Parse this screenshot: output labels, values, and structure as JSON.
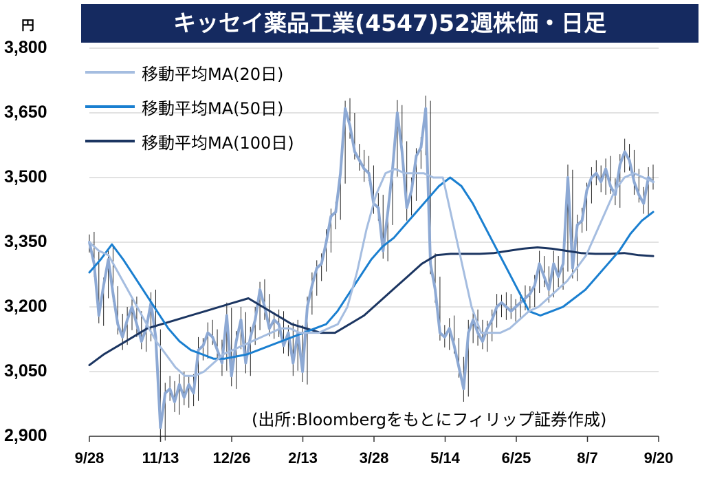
{
  "header": {
    "title": "キッセイ薬品工業(4547)52週株価・日足",
    "unit": "円"
  },
  "source_note": "(出所:Bloombergをもとにフィリップ証券作成)",
  "colors": {
    "title_bg": "#152a60",
    "price": "#8da9d4",
    "ma20": "#a5bde0",
    "ma50": "#1a7fd0",
    "ma100": "#1b3561",
    "grid": "#d0d0d0"
  },
  "chart_data": {
    "type": "line",
    "title": "キッセイ薬品工業(4547)52週株価・日足",
    "ylabel": "円",
    "ylim": [
      2900,
      3800
    ],
    "yticks": [
      "3,800",
      "3,650",
      "3,500",
      "3,350",
      "3,200",
      "3,050",
      "2,900"
    ],
    "ytick_values": [
      3800,
      3650,
      3500,
      3350,
      3200,
      3050,
      2900
    ],
    "xticks": [
      "9/28",
      "11/13",
      "12/26",
      "2/13",
      "3/28",
      "5/14",
      "6/25",
      "8/7",
      "9/20"
    ],
    "grid": "horizontal",
    "legend_position": "top-left",
    "price_series": {
      "name": "",
      "values": [
        3350,
        3300,
        3180,
        3250,
        3310,
        3230,
        3160,
        3130,
        3170,
        3200,
        3160,
        3120,
        3150,
        3210,
        3130,
        2920,
        3000,
        3010,
        2980,
        3020,
        2990,
        3020,
        3000,
        3100,
        3110,
        3140,
        3130,
        3100,
        3070,
        3180,
        3040,
        3120,
        3170,
        3070,
        3130,
        3170,
        3240,
        3200,
        3150,
        3170,
        3160,
        3110,
        3140,
        3070,
        3140,
        3050,
        3200,
        3250,
        3290,
        3300,
        3350,
        3410,
        3420,
        3510,
        3660,
        3620,
        3560,
        3540,
        3520,
        3510,
        3440,
        3430,
        3330,
        3420,
        3520,
        3650,
        3560,
        3430,
        3470,
        3550,
        3570,
        3660,
        3300,
        3240,
        3140,
        3130,
        3150,
        3110,
        3060,
        3010,
        3140,
        3170,
        3140,
        3120,
        3150,
        3170,
        3200,
        3210,
        3200,
        3190,
        3200,
        3210,
        3220,
        3230,
        3250,
        3300,
        3270,
        3240,
        3300,
        3270,
        3300,
        3500,
        3290,
        3390,
        3400,
        3470,
        3500,
        3510,
        3490,
        3520,
        3480,
        3460,
        3530,
        3560,
        3540,
        3490,
        3460,
        3440,
        3500,
        3490
      ]
    },
    "series": [
      {
        "name": "移動平均MA(20日)",
        "values": [
          3350,
          3330,
          3320,
          3280,
          3240,
          3200,
          3160,
          3120,
          3090,
          3060,
          3040,
          3040,
          3050,
          3070,
          3090,
          3100,
          3110,
          3120,
          3130,
          3140,
          3150,
          3150,
          3140,
          3140,
          3140,
          3150,
          3160,
          3200,
          3280,
          3380,
          3460,
          3510,
          3520,
          3510,
          3510,
          3510,
          3500,
          3500,
          3400,
          3300,
          3200,
          3140,
          3140,
          3140,
          3150,
          3170,
          3190,
          3200,
          3220,
          3240,
          3260,
          3290,
          3320,
          3370,
          3420,
          3470,
          3500,
          3510,
          3500,
          3490
        ]
      },
      {
        "name": "移動平均MA(50日)",
        "values": [
          3280,
          3310,
          3345,
          3310,
          3270,
          3230,
          3190,
          3150,
          3120,
          3100,
          3090,
          3080,
          3080,
          3085,
          3090,
          3100,
          3110,
          3120,
          3130,
          3140,
          3150,
          3160,
          3190,
          3230,
          3270,
          3310,
          3340,
          3360,
          3390,
          3420,
          3450,
          3480,
          3500,
          3480,
          3440,
          3390,
          3340,
          3290,
          3240,
          3190,
          3180,
          3190,
          3200,
          3220,
          3240,
          3270,
          3300,
          3330,
          3370,
          3400,
          3420
        ]
      },
      {
        "name": "移動平均MA(100日)",
        "values": [
          3065,
          3090,
          3110,
          3130,
          3150,
          3160,
          3170,
          3180,
          3190,
          3200,
          3210,
          3220,
          3200,
          3180,
          3160,
          3150,
          3140,
          3140,
          3160,
          3180,
          3210,
          3240,
          3270,
          3300,
          3320,
          3323,
          3323,
          3323,
          3325,
          3330,
          3335,
          3338,
          3335,
          3330,
          3325,
          3323,
          3323,
          3325,
          3320,
          3318
        ]
      }
    ]
  }
}
